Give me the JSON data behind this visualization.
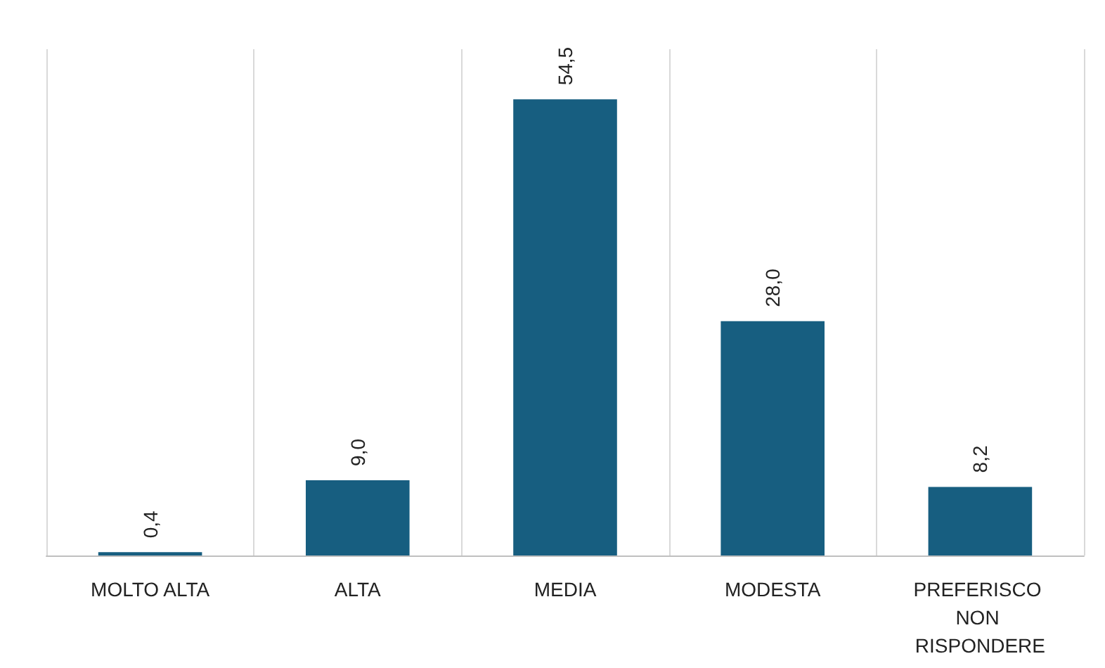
{
  "chart_data": {
    "type": "bar",
    "categories": [
      "MOLTO ALTA",
      "ALTA",
      "MEDIA",
      "MODESTA",
      "PREFERISCO NON RISPONDERE"
    ],
    "values": [
      0.4,
      9.0,
      54.5,
      28.0,
      8.2
    ],
    "value_labels": [
      "0,4",
      "9,0",
      "54,5",
      "28,0",
      "8,2"
    ],
    "color": "#175e80",
    "grid": "x"
  }
}
